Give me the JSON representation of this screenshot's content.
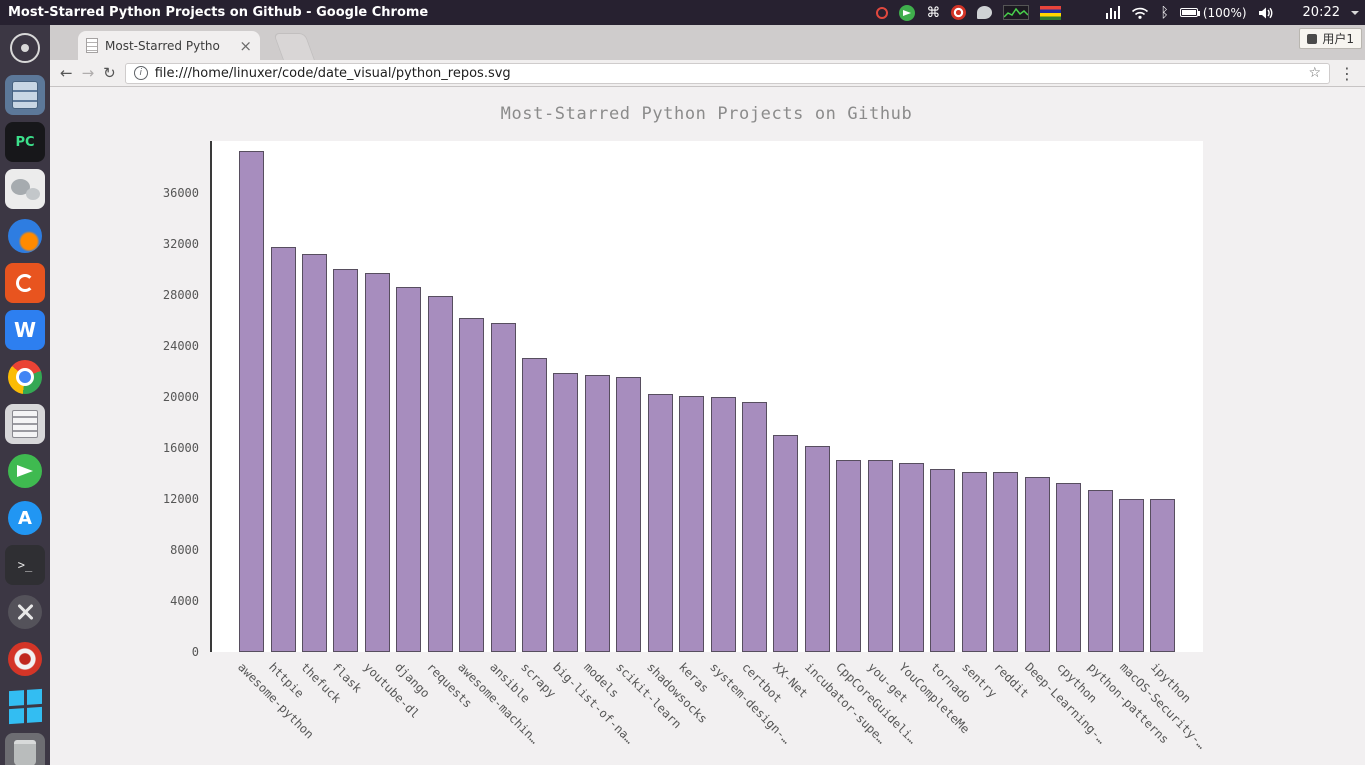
{
  "icons": {
    "back": "←",
    "forward": "→",
    "reload": "↻",
    "info": "i",
    "star": "☆",
    "menu": "⋮",
    "close_tab": "×",
    "command": "⌘",
    "bluetooth": "ᛒ",
    "pycharm": "PC",
    "wps": "W",
    "terminal": ">_"
  },
  "panel": {
    "window_title": "Most-Starred Python Projects on Github - Google Chrome",
    "battery": "(100%)",
    "clock": "20:22"
  },
  "ime_badge": "用户1",
  "browser": {
    "tab_title": "Most-Starred Pytho",
    "url": "file:///home/linuxer/code/date_visual/python_repos.svg"
  },
  "chart_data": {
    "type": "bar",
    "title": "Most-Starred Python Projects on Github",
    "categories": [
      "awesome-python",
      "httpie",
      "thefuck",
      "flask",
      "youtube-dl",
      "django",
      "requests",
      "awesome-machin…",
      "ansible",
      "scrapy",
      "big-list-of-na…",
      "models",
      "scikit-learn",
      "shadowsocks",
      "keras",
      "system-design-…",
      "certbot",
      "XX-Net",
      "incubator-supe…",
      "CppCoreGuideli…",
      "you-get",
      "YouCompleteMe",
      "tornado",
      "sentry",
      "reddit",
      "Deep-Learning-…",
      "cpython",
      "python-patterns",
      "macOS-Security-…",
      "ipython"
    ],
    "values": [
      39350,
      31800,
      31200,
      30050,
      29750,
      28650,
      27900,
      26200,
      25800,
      23050,
      21900,
      21750,
      21550,
      20250,
      20100,
      20000,
      19650,
      17050,
      16200,
      15100,
      15050,
      14800,
      14350,
      14150,
      14150,
      13700,
      13300,
      12700,
      12000,
      12000
    ],
    "xlabel": "",
    "ylabel": "",
    "ylim": [
      0,
      40100
    ],
    "yticks": [
      0,
      4000,
      8000,
      12000,
      16000,
      20000,
      24000,
      28000,
      32000,
      36000
    ],
    "bar_color": "#a78dbe",
    "plot_background": "#ffffff",
    "page_background": "#f2f0f1",
    "grid": false,
    "legend": "none"
  }
}
